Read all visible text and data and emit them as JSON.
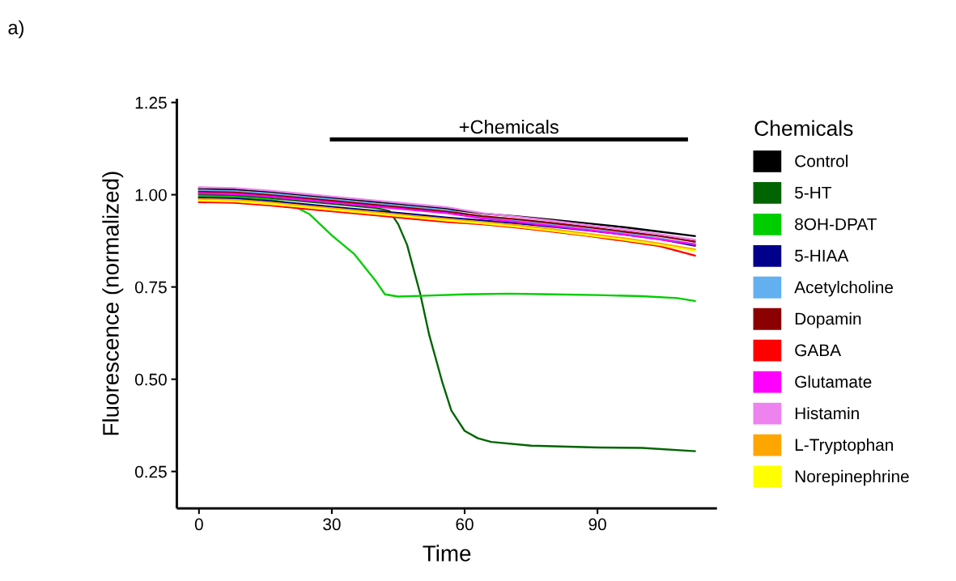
{
  "chart_data": {
    "type": "line",
    "xlabel": "Time",
    "ylabel": "Fluorescence (normalized)",
    "legend_title": "Chemicals",
    "legend": "right",
    "grid": false,
    "marker": "none",
    "line_style": "solid",
    "xlim": [
      -5,
      117
    ],
    "xticks": [
      0,
      30,
      60,
      90
    ],
    "ylim": [
      0.15,
      1.26
    ],
    "yticks": [
      {
        "value": 0.25,
        "label": "0.25"
      },
      {
        "value": 0.5,
        "label": "0.50"
      },
      {
        "value": 0.75,
        "label": "0.75"
      },
      {
        "value": 1.0,
        "label": "1.00"
      },
      {
        "value": 1.25,
        "label": "1.25"
      }
    ],
    "annotations": [
      "a)",
      {
        "text": "+Chemicals",
        "x": 70,
        "y": 1.15
      }
    ],
    "x": [
      0,
      8,
      16,
      24,
      32,
      40,
      48,
      56,
      64,
      72,
      80,
      88,
      96,
      104,
      112
    ],
    "series": [
      {
        "name": "Control",
        "color": "#000000",
        "values": [
          1.016,
          1.014,
          1.007,
          0.998,
          0.989,
          0.98,
          0.971,
          0.962,
          0.949,
          0.941,
          0.932,
          0.922,
          0.912,
          0.9,
          0.888
        ]
      },
      {
        "name": "5-HT",
        "color": "#006400",
        "x": [
          0,
          8,
          16,
          24,
          32,
          40,
          43,
          45,
          47,
          50,
          52,
          55,
          57,
          60,
          63,
          66,
          75,
          90,
          100,
          112
        ],
        "values": [
          1.0,
          0.998,
          0.991,
          0.982,
          0.973,
          0.964,
          0.956,
          0.92,
          0.864,
          0.73,
          0.62,
          0.49,
          0.415,
          0.36,
          0.34,
          0.33,
          0.32,
          0.315,
          0.314,
          0.305
        ]
      },
      {
        "name": "8OH-DPAT",
        "color": "#00cd00",
        "x": [
          0,
          8,
          16,
          20,
          25,
          30,
          35,
          40,
          42,
          45,
          50,
          60,
          70,
          80,
          90,
          100,
          108,
          112
        ],
        "values": [
          0.996,
          0.994,
          0.987,
          0.978,
          0.947,
          0.89,
          0.84,
          0.765,
          0.73,
          0.724,
          0.726,
          0.73,
          0.732,
          0.73,
          0.728,
          0.725,
          0.72,
          0.712
        ]
      },
      {
        "name": "5-HIAA",
        "color": "#00008b",
        "values": [
          0.992,
          0.99,
          0.983,
          0.974,
          0.965,
          0.956,
          0.947,
          0.938,
          0.93,
          0.922,
          0.913,
          0.903,
          0.892,
          0.88,
          0.862
        ]
      },
      {
        "name": "Acetylcholine",
        "color": "#63b0f0",
        "values": [
          1.012,
          1.01,
          1.003,
          0.994,
          0.985,
          0.976,
          0.967,
          0.958,
          0.938,
          0.928,
          0.918,
          0.906,
          0.895,
          0.882,
          0.865
        ]
      },
      {
        "name": "Dopamin",
        "color": "#8b0000",
        "values": [
          1.008,
          1.006,
          0.999,
          0.99,
          0.981,
          0.972,
          0.963,
          0.954,
          0.942,
          0.933,
          0.923,
          0.912,
          0.9,
          0.888,
          0.873
        ]
      },
      {
        "name": "GABA",
        "color": "#ff0000",
        "values": [
          0.98,
          0.978,
          0.971,
          0.962,
          0.953,
          0.944,
          0.935,
          0.926,
          0.92,
          0.911,
          0.9,
          0.888,
          0.875,
          0.861,
          0.835
        ]
      },
      {
        "name": "Glutamate",
        "color": "#ff00ff",
        "values": [
          1.004,
          1.002,
          0.995,
          0.986,
          0.977,
          0.968,
          0.959,
          0.95,
          0.936,
          0.926,
          0.915,
          0.904,
          0.892,
          0.879,
          0.866
        ]
      },
      {
        "name": "Histamin",
        "color": "#ee82ee",
        "values": [
          1.02,
          1.018,
          1.011,
          1.002,
          0.993,
          0.984,
          0.975,
          0.966,
          0.95,
          0.94,
          0.929,
          0.917,
          0.906,
          0.893,
          0.878
        ]
      },
      {
        "name": "L-Tryptophan",
        "color": "#ffa500",
        "values": [
          0.988,
          0.986,
          0.979,
          0.97,
          0.961,
          0.952,
          0.943,
          0.934,
          0.926,
          0.917,
          0.906,
          0.894,
          0.882,
          0.868,
          0.852
        ]
      },
      {
        "name": "Norepinephrine",
        "color": "#ffff00",
        "values": [
          0.984,
          0.982,
          0.975,
          0.966,
          0.957,
          0.948,
          0.939,
          0.93,
          0.922,
          0.913,
          0.902,
          0.89,
          0.878,
          0.864,
          0.848
        ]
      },
      {
        "color": "#000000",
        "x": [
          30,
          110
        ],
        "values": [
          1.15,
          1.15
        ]
      }
    ]
  }
}
